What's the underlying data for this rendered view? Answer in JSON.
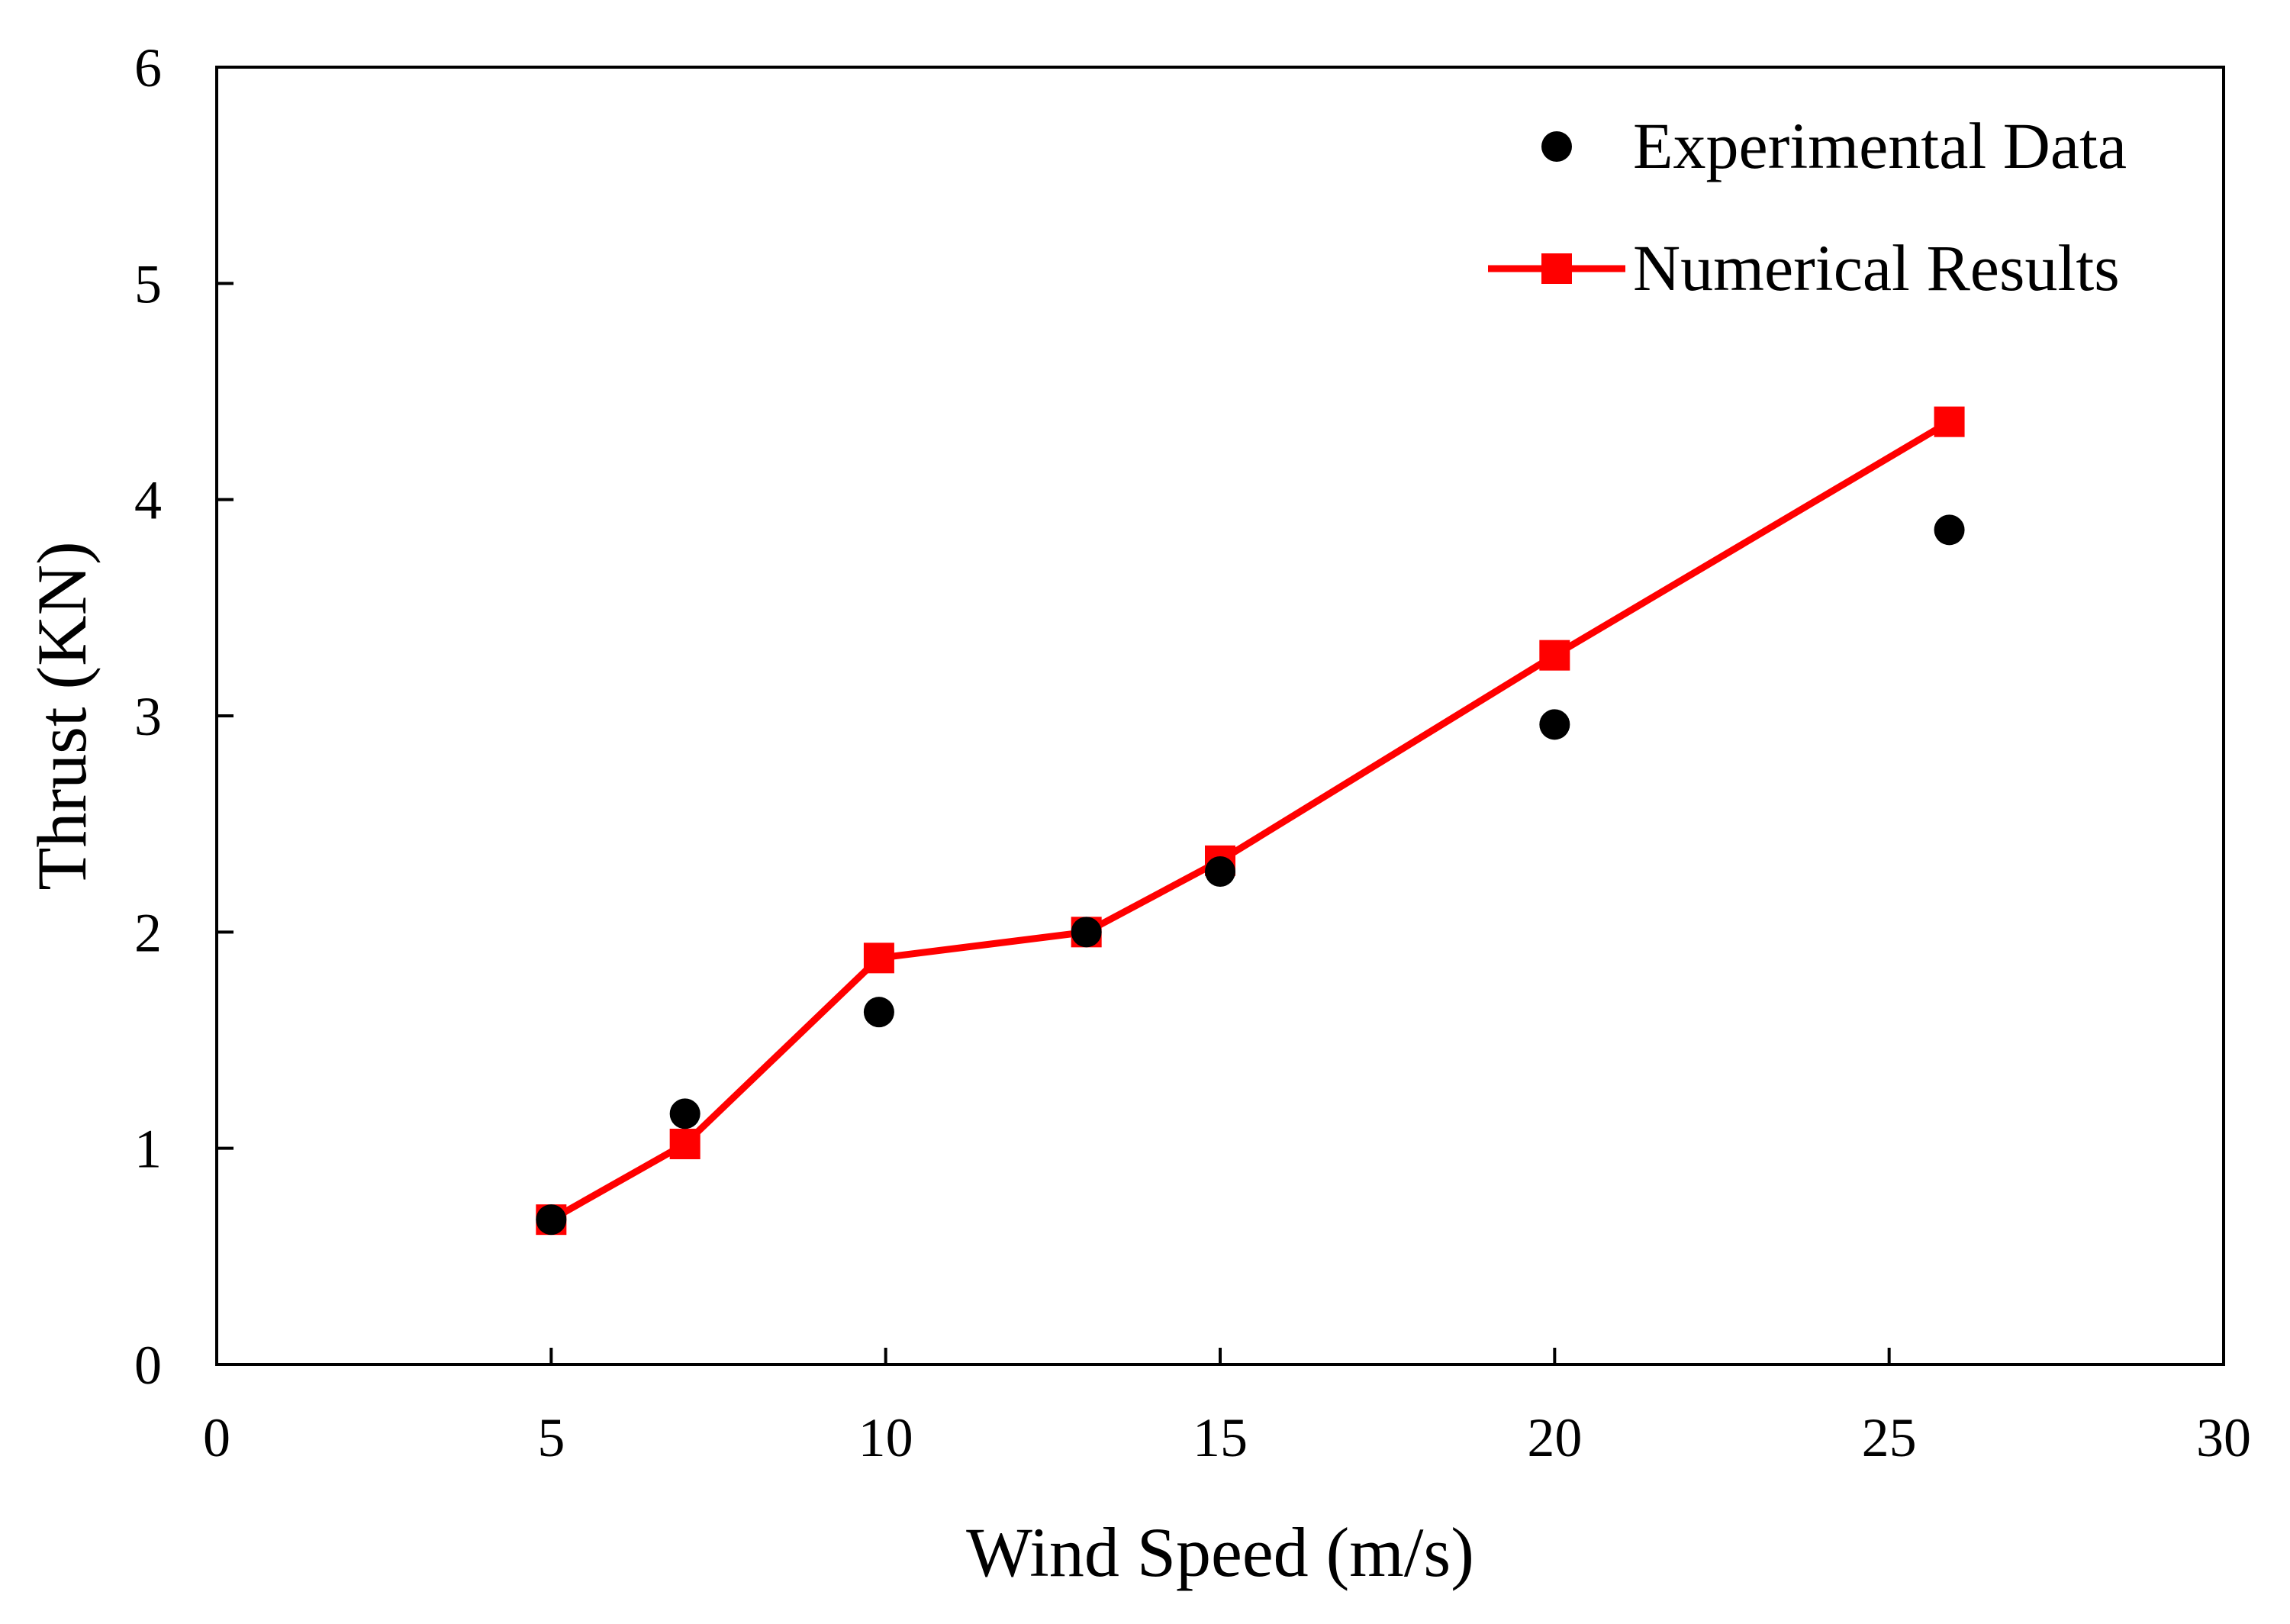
{
  "chart_data": {
    "type": "scatter",
    "title": "",
    "xlabel": "Wind Speed (m/s)",
    "ylabel": "Thrust (KN)",
    "xlim": [
      0,
      30
    ],
    "ylim": [
      0,
      6
    ],
    "xticks": [
      "0",
      "5",
      "10",
      "15",
      "20",
      "25",
      "30"
    ],
    "yticks": [
      "0",
      "1",
      "2",
      "3",
      "4",
      "5",
      "6"
    ],
    "grid": false,
    "legend_position": "top-right",
    "series": [
      {
        "name": "Experimental Data",
        "style": "markers",
        "marker": "circle",
        "color": "#000000",
        "x": [
          5,
          7,
          9.9,
          13,
          15,
          20,
          25.9
        ],
        "y": [
          0.67,
          1.16,
          1.63,
          2.0,
          2.28,
          2.96,
          3.86
        ]
      },
      {
        "name": "Numerical Results",
        "style": "line-markers",
        "marker": "square",
        "color": "#ff0000",
        "x": [
          5,
          7,
          9.9,
          13,
          15,
          20,
          25.9
        ],
        "y": [
          0.67,
          1.02,
          1.88,
          2.0,
          2.33,
          3.28,
          4.36
        ]
      }
    ]
  }
}
